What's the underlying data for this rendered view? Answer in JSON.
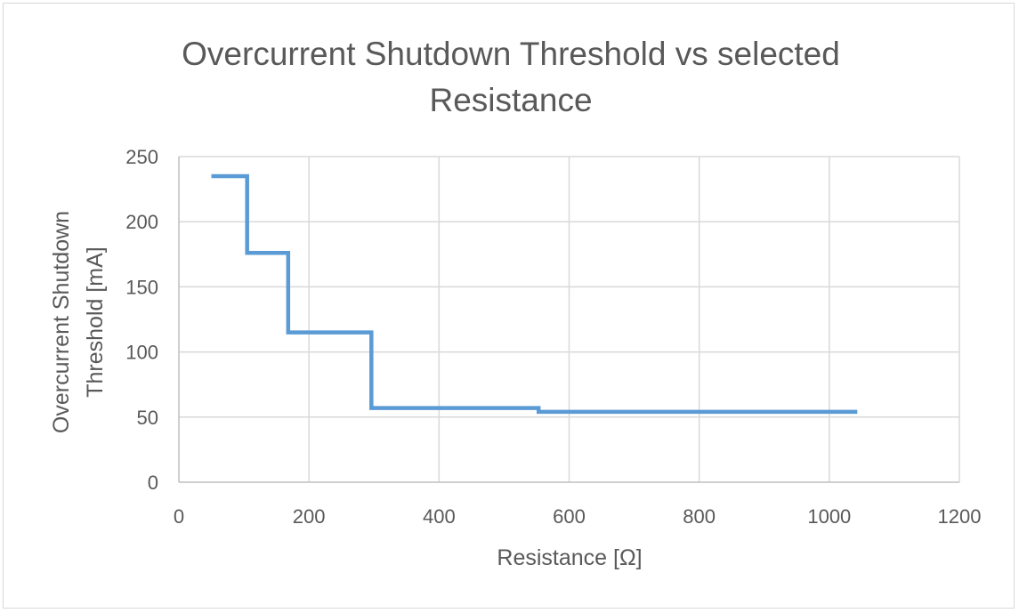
{
  "chart_data": {
    "type": "line",
    "title": [
      "Overcurrent Shutdown Threshold vs selected",
      "Resistance"
    ],
    "xlabel": "Resistance [Ω]",
    "ylabel": [
      "Overcurrent Shutdown",
      "Threshold [mA]"
    ],
    "xlim": [
      0,
      1200
    ],
    "ylim": [
      0,
      250
    ],
    "xticks": [
      0,
      200,
      400,
      600,
      800,
      1000,
      1200
    ],
    "yticks": [
      0,
      50,
      100,
      150,
      200,
      250
    ],
    "grid": true,
    "legend": "none",
    "series": [
      {
        "color": "#5b9bd5",
        "x": [
          50,
          105,
          105,
          168,
          168,
          296,
          296,
          553,
          553,
          1043
        ],
        "y": [
          235,
          235,
          176,
          176,
          115,
          115,
          57,
          57,
          54,
          54
        ]
      }
    ]
  }
}
